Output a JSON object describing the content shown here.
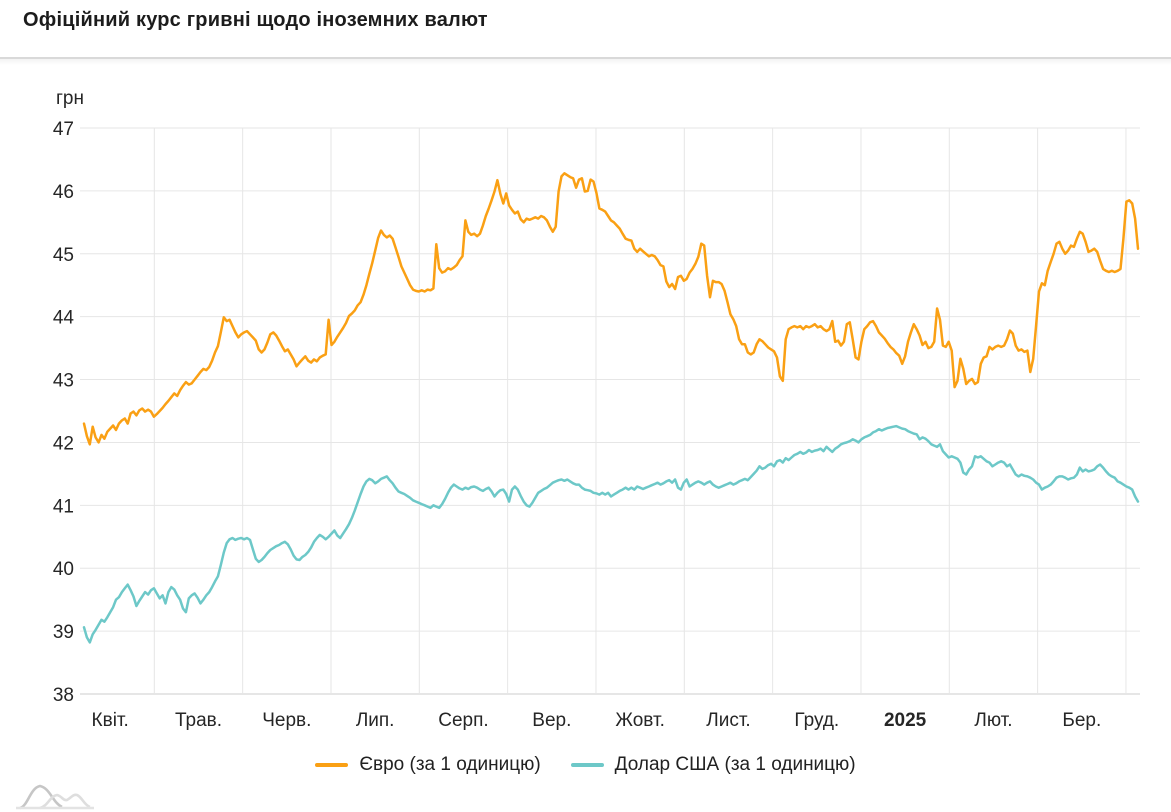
{
  "page": {
    "title": "Офіційний курс гривні щодо іноземних валют"
  },
  "chart_data": {
    "type": "line",
    "title": "Офіційний курс гривні щодо іноземних валют",
    "xlabel": "",
    "ylabel": "грн",
    "ylim": [
      38,
      47
    ],
    "y_ticks": [
      47,
      46,
      45,
      44,
      43,
      42,
      41,
      40,
      39,
      38
    ],
    "x_tick_labels": [
      "Квіт.",
      "Трав.",
      "Черв.",
      "Лип.",
      "Серп.",
      "Вер.",
      "Жовт.",
      "Лист.",
      "Груд.",
      "2025",
      "Лют.",
      "Бер."
    ],
    "x_bold_label": "2025",
    "grid": true,
    "legend_position": "bottom",
    "sampling": "daily values, April 2024 - early April 2025",
    "series": [
      {
        "name": "Євро (за 1 одиницю)",
        "color": "#faa014",
        "values": [
          42.3,
          42.1,
          41.97,
          42.25,
          42.08,
          42.0,
          42.12,
          42.06,
          42.17,
          42.22,
          42.27,
          42.2,
          42.3,
          42.35,
          42.38,
          42.3,
          42.46,
          42.49,
          42.43,
          42.51,
          42.54,
          42.49,
          42.52,
          42.49,
          42.41,
          42.45,
          42.5,
          42.55,
          42.61,
          42.66,
          42.72,
          42.78,
          42.74,
          42.83,
          42.9,
          42.96,
          42.92,
          42.94,
          43.0,
          43.06,
          43.12,
          43.17,
          43.15,
          43.2,
          43.3,
          43.43,
          43.53,
          43.75,
          43.99,
          43.93,
          43.95,
          43.85,
          43.75,
          43.67,
          43.72,
          43.75,
          43.77,
          43.72,
          43.67,
          43.62,
          43.48,
          43.43,
          43.48,
          43.59,
          43.72,
          43.75,
          43.7,
          43.62,
          43.53,
          43.45,
          43.48,
          43.4,
          43.32,
          43.21,
          43.27,
          43.32,
          43.37,
          43.3,
          43.27,
          43.32,
          43.29,
          43.35,
          43.38,
          43.4,
          43.95,
          43.55,
          43.6,
          43.68,
          43.75,
          43.82,
          43.9,
          44.01,
          44.05,
          44.1,
          44.18,
          44.23,
          44.35,
          44.5,
          44.68,
          44.85,
          45.05,
          45.25,
          45.37,
          45.3,
          45.26,
          45.29,
          45.24,
          45.1,
          44.95,
          44.8,
          44.7,
          44.6,
          44.5,
          44.43,
          44.41,
          44.4,
          44.42,
          44.4,
          44.43,
          44.42,
          44.45,
          45.15,
          44.77,
          44.7,
          44.72,
          44.77,
          44.75,
          44.78,
          44.82,
          44.9,
          44.96,
          45.53,
          45.35,
          45.3,
          45.32,
          45.28,
          45.32,
          45.45,
          45.6,
          45.72,
          45.85,
          45.99,
          46.17,
          45.95,
          45.8,
          45.96,
          45.77,
          45.7,
          45.64,
          45.67,
          45.55,
          45.5,
          45.56,
          45.54,
          45.56,
          45.58,
          45.56,
          45.6,
          45.58,
          45.53,
          45.43,
          45.35,
          45.43,
          45.99,
          46.23,
          46.28,
          46.25,
          46.22,
          46.2,
          46.05,
          46.18,
          46.2,
          45.99,
          46.0,
          46.18,
          46.15,
          45.97,
          45.72,
          45.7,
          45.67,
          45.6,
          45.53,
          45.5,
          45.45,
          45.4,
          45.32,
          45.24,
          45.22,
          45.21,
          45.08,
          45.03,
          45.08,
          45.04,
          45.0,
          44.96,
          44.98,
          44.96,
          44.9,
          44.82,
          44.8,
          44.56,
          44.47,
          44.52,
          44.44,
          44.63,
          44.65,
          44.57,
          44.6,
          44.7,
          44.76,
          44.84,
          44.95,
          45.16,
          45.13,
          44.65,
          44.31,
          44.57,
          44.55,
          44.55,
          44.52,
          44.41,
          44.23,
          44.04,
          43.96,
          43.85,
          43.64,
          43.56,
          43.56,
          43.43,
          43.4,
          43.43,
          43.56,
          43.64,
          43.61,
          43.56,
          43.51,
          43.48,
          43.45,
          43.35,
          43.05,
          42.98,
          43.64,
          43.8,
          43.83,
          43.85,
          43.83,
          43.85,
          43.8,
          43.85,
          43.83,
          43.85,
          43.88,
          43.83,
          43.85,
          43.8,
          43.77,
          43.8,
          43.93,
          43.6,
          43.62,
          43.54,
          43.6,
          43.88,
          43.91,
          43.64,
          43.35,
          43.32,
          43.6,
          43.8,
          43.85,
          43.91,
          43.93,
          43.85,
          43.75,
          43.7,
          43.65,
          43.58,
          43.52,
          43.48,
          43.42,
          43.38,
          43.25,
          43.37,
          43.6,
          43.75,
          43.88,
          43.8,
          43.7,
          43.55,
          43.6,
          43.5,
          43.52,
          43.6,
          44.13,
          43.95,
          43.54,
          43.52,
          43.6,
          43.46,
          42.88,
          42.98,
          43.33,
          43.17,
          42.93,
          42.98,
          43.01,
          42.93,
          42.96,
          43.25,
          43.35,
          43.37,
          43.52,
          43.48,
          43.52,
          43.54,
          43.52,
          43.54,
          43.64,
          43.78,
          43.73,
          43.54,
          43.46,
          43.48,
          43.44,
          43.46,
          43.12,
          43.33,
          43.86,
          44.4,
          44.53,
          44.5,
          44.73,
          44.87,
          45.0,
          45.16,
          45.19,
          45.08,
          45.0,
          45.05,
          45.13,
          45.11,
          45.24,
          45.35,
          45.32,
          45.19,
          45.03,
          45.05,
          45.08,
          45.03,
          44.89,
          44.76,
          44.73,
          44.71,
          44.73,
          44.71,
          44.73,
          44.76,
          45.24,
          45.83,
          45.85,
          45.8,
          45.56,
          45.08
        ]
      },
      {
        "name": "Долар США (за 1 одиницю)",
        "color": "#6dc8c8",
        "values": [
          39.06,
          38.9,
          38.82,
          38.95,
          39.02,
          39.1,
          39.18,
          39.15,
          39.22,
          39.3,
          39.38,
          39.5,
          39.54,
          39.62,
          39.68,
          39.74,
          39.65,
          39.55,
          39.4,
          39.48,
          39.55,
          39.62,
          39.58,
          39.65,
          39.68,
          39.6,
          39.52,
          39.57,
          39.44,
          39.62,
          39.7,
          39.66,
          39.57,
          39.5,
          39.36,
          39.3,
          39.52,
          39.57,
          39.6,
          39.53,
          39.44,
          39.5,
          39.57,
          39.62,
          39.7,
          39.79,
          39.87,
          40.05,
          40.25,
          40.4,
          40.46,
          40.48,
          40.45,
          40.47,
          40.48,
          40.46,
          40.48,
          40.45,
          40.3,
          40.15,
          40.1,
          40.13,
          40.18,
          40.24,
          40.29,
          40.32,
          40.35,
          40.37,
          40.4,
          40.42,
          40.38,
          40.3,
          40.2,
          40.14,
          40.13,
          40.18,
          40.21,
          40.26,
          40.33,
          40.42,
          40.48,
          40.53,
          40.5,
          40.46,
          40.5,
          40.55,
          40.6,
          40.52,
          40.48,
          40.55,
          40.62,
          40.7,
          40.8,
          40.92,
          41.05,
          41.18,
          41.3,
          41.38,
          41.42,
          41.4,
          41.35,
          41.38,
          41.42,
          41.44,
          41.46,
          41.4,
          41.35,
          41.28,
          41.22,
          41.2,
          41.18,
          41.15,
          41.12,
          41.08,
          41.06,
          41.04,
          41.02,
          41.0,
          40.98,
          40.96,
          41.0,
          40.98,
          40.96,
          41.02,
          41.1,
          41.2,
          41.28,
          41.33,
          41.3,
          41.27,
          41.25,
          41.28,
          41.26,
          41.29,
          41.3,
          41.28,
          41.25,
          41.23,
          41.26,
          41.28,
          41.22,
          41.14,
          41.2,
          41.24,
          41.25,
          41.18,
          41.06,
          41.25,
          41.3,
          41.25,
          41.15,
          41.06,
          41.0,
          40.98,
          41.04,
          41.12,
          41.2,
          41.23,
          41.26,
          41.28,
          41.32,
          41.36,
          41.38,
          41.4,
          41.41,
          41.39,
          41.41,
          41.38,
          41.35,
          41.33,
          41.33,
          41.28,
          41.25,
          41.24,
          41.23,
          41.2,
          41.19,
          41.17,
          41.2,
          41.17,
          41.2,
          41.14,
          41.17,
          41.2,
          41.23,
          41.25,
          41.28,
          41.25,
          41.28,
          41.25,
          41.3,
          41.28,
          41.26,
          41.28,
          41.3,
          41.32,
          41.34,
          41.36,
          41.33,
          41.35,
          41.38,
          41.4,
          41.36,
          41.41,
          41.28,
          41.25,
          41.36,
          41.41,
          41.3,
          41.33,
          41.36,
          41.38,
          41.36,
          41.33,
          41.36,
          41.38,
          41.33,
          41.3,
          41.28,
          41.3,
          41.32,
          41.34,
          41.36,
          41.33,
          41.35,
          41.38,
          41.4,
          41.42,
          41.4,
          41.45,
          41.5,
          41.55,
          41.62,
          41.58,
          41.6,
          41.64,
          41.66,
          41.62,
          41.7,
          41.72,
          41.68,
          41.75,
          41.72,
          41.76,
          41.8,
          41.82,
          41.85,
          41.82,
          41.84,
          41.88,
          41.85,
          41.87,
          41.88,
          41.9,
          41.86,
          41.93,
          41.89,
          41.85,
          41.9,
          41.93,
          41.97,
          41.99,
          42.0,
          42.02,
          42.05,
          42.03,
          42.0,
          42.05,
          42.08,
          42.1,
          42.12,
          42.16,
          42.18,
          42.21,
          42.19,
          42.21,
          42.23,
          42.24,
          42.25,
          42.26,
          42.24,
          42.22,
          42.21,
          42.18,
          42.16,
          42.14,
          42.13,
          42.05,
          42.08,
          42.06,
          42.02,
          41.97,
          41.95,
          41.93,
          41.97,
          41.86,
          41.81,
          41.76,
          41.78,
          41.76,
          41.74,
          41.68,
          41.52,
          41.49,
          41.57,
          41.62,
          41.78,
          41.76,
          41.78,
          41.74,
          41.7,
          41.68,
          41.62,
          41.65,
          41.68,
          41.7,
          41.68,
          41.62,
          41.65,
          41.57,
          41.49,
          41.46,
          41.49,
          41.47,
          41.46,
          41.44,
          41.41,
          41.36,
          41.33,
          41.25,
          41.28,
          41.3,
          41.33,
          41.38,
          41.44,
          41.46,
          41.46,
          41.44,
          41.41,
          41.43,
          41.44,
          41.49,
          41.6,
          41.54,
          41.57,
          41.54,
          41.55,
          41.57,
          41.62,
          41.65,
          41.6,
          41.54,
          41.49,
          41.46,
          41.44,
          41.38,
          41.36,
          41.33,
          41.3,
          41.28,
          41.25,
          41.14,
          41.06
        ]
      }
    ]
  },
  "colors": {
    "grid": "#e6e6e6",
    "axis_line": "#cccccc",
    "tick_label": "#262626"
  }
}
